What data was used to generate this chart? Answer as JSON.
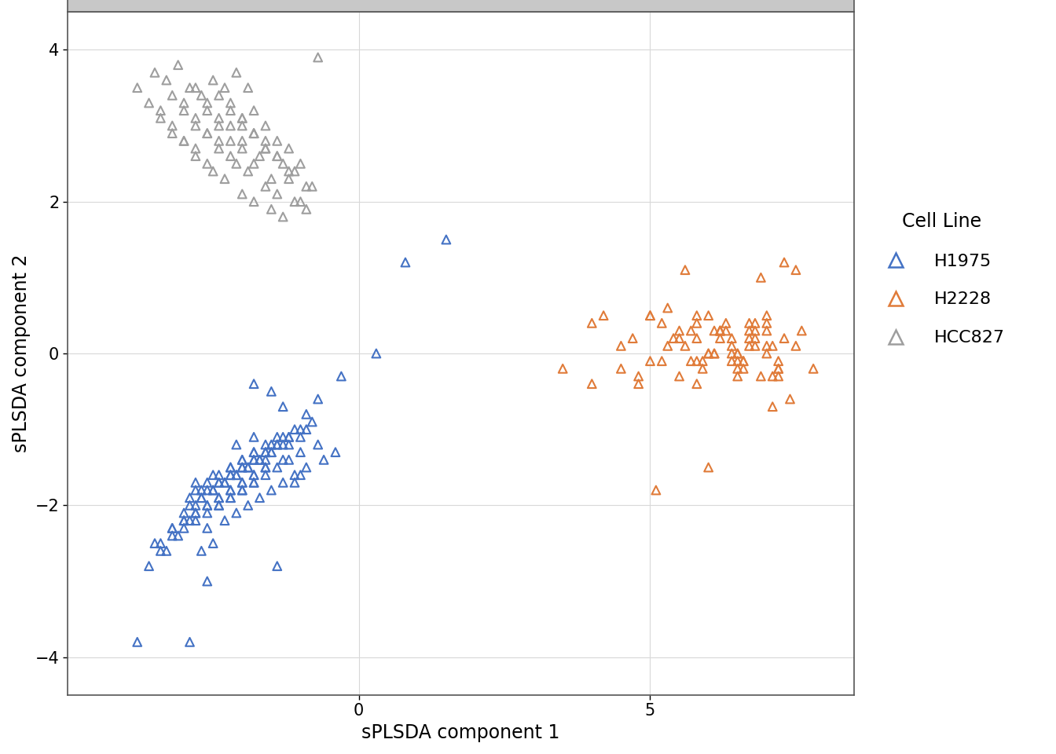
{
  "xlabel": "sPLSDA component 1",
  "ylabel": "sPLSDA component 2",
  "xlim": [
    -5.0,
    8.5
  ],
  "ylim": [
    -4.5,
    4.5
  ],
  "xticks": [
    0,
    5
  ],
  "yticks": [
    -4,
    -2,
    0,
    2,
    4
  ],
  "colors": {
    "H1975": "#4472C4",
    "H2228": "#E07B39",
    "HCC827": "#9E9E9E"
  },
  "background_color": "#FFFFFF",
  "panel_bg": "#FFFFFF",
  "title_bg": "#C8C8C8",
  "title_border": "#555555",
  "grid_color": "#D8D8D8",
  "H1975_x": [
    -3.8,
    -0.3,
    0.8,
    1.5,
    0.3,
    -3.5,
    -2.8,
    -2.5,
    -2.2,
    -2.0,
    -1.8,
    -1.5,
    -1.3,
    -1.0,
    -0.8,
    -3.2,
    -2.9,
    -2.7,
    -2.4,
    -2.2,
    -2.0,
    -1.8,
    -1.6,
    -1.4,
    -1.2,
    -3.0,
    -2.8,
    -2.6,
    -2.4,
    -2.2,
    -2.0,
    -1.8,
    -1.6,
    -1.4,
    -1.1,
    -3.3,
    -3.0,
    -2.8,
    -2.6,
    -2.4,
    -2.2,
    -2.0,
    -1.8,
    -1.6,
    -1.3,
    -3.1,
    -2.9,
    -2.7,
    -2.5,
    -2.3,
    -2.1,
    -1.9,
    -1.7,
    -1.5,
    -1.2,
    -2.9,
    -2.7,
    -2.5,
    -2.3,
    -2.1,
    -1.9,
    -1.7,
    -1.5,
    -1.3,
    -1.0,
    -2.8,
    -2.6,
    -2.4,
    -2.2,
    -2.0,
    -1.8,
    -1.6,
    -1.4,
    -1.2,
    -0.9,
    -2.6,
    -2.4,
    -2.2,
    -2.0,
    -1.8,
    -1.6,
    -1.4,
    -1.2,
    -1.0,
    -0.7,
    -2.5,
    -2.3,
    -2.1,
    -1.9,
    -1.7,
    -1.5,
    -1.3,
    -1.1,
    -0.9,
    -0.6,
    -3.6,
    -3.4,
    -3.2,
    -3.0,
    -2.8,
    -2.6,
    -2.4,
    -2.2,
    -2.0,
    -1.8,
    -3.4,
    -3.2,
    -3.0,
    -2.8,
    -2.6,
    -2.4,
    -2.2,
    -2.0,
    -1.8,
    -1.6,
    -0.4,
    -1.6,
    -0.9,
    -1.0,
    -0.7,
    -1.4,
    -2.6,
    -2.9,
    -2.7,
    -1.1,
    -1.8,
    -2.1,
    -1.3,
    -1.5,
    -1.8
  ],
  "H1975_y": [
    -3.8,
    -0.3,
    1.2,
    1.5,
    0.0,
    -2.5,
    -1.7,
    -1.6,
    -1.5,
    -1.4,
    -1.3,
    -1.2,
    -1.1,
    -1.0,
    -0.9,
    -2.3,
    -1.9,
    -1.8,
    -1.7,
    -1.6,
    -1.5,
    -1.4,
    -1.3,
    -1.2,
    -1.1,
    -2.1,
    -1.8,
    -1.7,
    -1.6,
    -1.5,
    -1.4,
    -1.3,
    -1.2,
    -1.1,
    -1.0,
    -2.6,
    -2.2,
    -2.1,
    -2.0,
    -1.9,
    -1.8,
    -1.7,
    -1.6,
    -1.5,
    -1.4,
    -2.4,
    -2.0,
    -1.9,
    -1.8,
    -1.7,
    -1.6,
    -1.5,
    -1.4,
    -1.3,
    -1.2,
    -2.2,
    -1.9,
    -1.8,
    -1.7,
    -1.6,
    -1.5,
    -1.4,
    -1.3,
    -1.2,
    -1.1,
    -2.0,
    -1.8,
    -1.7,
    -1.6,
    -1.5,
    -1.4,
    -1.3,
    -1.2,
    -1.1,
    -1.0,
    -2.3,
    -2.0,
    -1.9,
    -1.8,
    -1.7,
    -1.6,
    -1.5,
    -1.4,
    -1.3,
    -1.2,
    -2.5,
    -2.2,
    -2.1,
    -2.0,
    -1.9,
    -1.8,
    -1.7,
    -1.6,
    -1.5,
    -1.4,
    -2.8,
    -2.5,
    -2.4,
    -2.3,
    -2.2,
    -2.1,
    -2.0,
    -1.9,
    -1.8,
    -1.7,
    -2.6,
    -2.3,
    -2.2,
    -2.1,
    -2.0,
    -1.9,
    -1.8,
    -1.7,
    -1.6,
    -1.5,
    -1.3,
    -1.4,
    -0.8,
    -1.6,
    -0.6,
    -2.8,
    -3.0,
    -3.8,
    -2.6,
    -1.7,
    -1.1,
    -1.2,
    -0.7,
    -0.5,
    -0.4
  ],
  "H2228_x": [
    3.5,
    4.0,
    4.5,
    5.0,
    5.5,
    5.8,
    6.0,
    6.2,
    6.5,
    6.8,
    4.2,
    4.7,
    5.2,
    5.7,
    6.0,
    6.3,
    6.5,
    6.7,
    7.0,
    7.2,
    4.8,
    5.3,
    5.8,
    6.1,
    6.4,
    6.6,
    6.8,
    7.0,
    7.2,
    7.5,
    5.5,
    5.9,
    6.2,
    6.5,
    6.7,
    6.9,
    7.1,
    7.3,
    5.2,
    5.6,
    5.9,
    6.2,
    6.4,
    6.6,
    6.8,
    7.0,
    7.2,
    4.0,
    4.5,
    5.0,
    5.5,
    5.8,
    6.1,
    6.4,
    6.7,
    7.0,
    6.0,
    6.3,
    6.5,
    6.7,
    7.0,
    7.2,
    4.8,
    5.3,
    5.7,
    6.2,
    6.4,
    6.6,
    6.8,
    7.1,
    5.0,
    5.4,
    5.8,
    6.1,
    6.5,
    5.6,
    6.9,
    5.1,
    6.0,
    7.1,
    5.8,
    7.8,
    7.4,
    7.6,
    7.3,
    7.5
  ],
  "H2228_y": [
    -0.2,
    0.4,
    0.1,
    -0.1,
    0.3,
    0.5,
    0.0,
    0.2,
    -0.3,
    0.1,
    0.5,
    0.2,
    -0.1,
    0.3,
    0.0,
    0.4,
    -0.2,
    0.1,
    0.3,
    -0.1,
    -0.3,
    0.1,
    0.4,
    0.0,
    0.2,
    -0.1,
    0.3,
    0.5,
    -0.2,
    0.1,
    0.2,
    -0.1,
    0.3,
    0.0,
    0.4,
    -0.3,
    0.1,
    0.2,
    0.4,
    0.1,
    -0.2,
    0.3,
    0.0,
    -0.1,
    0.2,
    0.4,
    -0.3,
    -0.4,
    -0.2,
    0.5,
    -0.3,
    0.2,
    0.0,
    -0.1,
    0.3,
    0.1,
    0.5,
    0.3,
    -0.1,
    0.2,
    0.0,
    -0.2,
    -0.4,
    0.6,
    -0.1,
    0.3,
    0.1,
    -0.2,
    0.4,
    -0.3,
    0.5,
    0.2,
    -0.1,
    0.3,
    0.0,
    1.1,
    1.0,
    -1.8,
    -1.5,
    -0.7,
    -0.4,
    -0.2,
    -0.6,
    0.3,
    1.2,
    1.1
  ],
  "HCC827_x": [
    -3.8,
    -3.5,
    -3.3,
    -3.1,
    -2.9,
    -2.7,
    -2.5,
    -2.3,
    -2.1,
    -1.9,
    -3.6,
    -3.4,
    -3.2,
    -3.0,
    -2.8,
    -2.6,
    -2.4,
    -2.2,
    -2.0,
    -1.8,
    -3.4,
    -3.2,
    -3.0,
    -2.8,
    -2.6,
    -2.4,
    -2.2,
    -2.0,
    -1.8,
    -1.6,
    -3.2,
    -3.0,
    -2.8,
    -2.6,
    -2.4,
    -2.2,
    -2.0,
    -1.8,
    -1.6,
    -1.4,
    -3.0,
    -2.8,
    -2.6,
    -2.4,
    -2.2,
    -2.0,
    -1.8,
    -1.6,
    -1.4,
    -1.2,
    -2.8,
    -2.6,
    -2.4,
    -2.2,
    -2.0,
    -1.8,
    -1.6,
    -1.4,
    -1.2,
    -1.0,
    -2.5,
    -2.3,
    -2.1,
    -1.9,
    -1.7,
    -1.5,
    -1.3,
    -1.1,
    -0.9,
    -2.0,
    -1.8,
    -1.6,
    -1.4,
    -1.2,
    -1.0,
    -0.8,
    -1.5,
    -1.3,
    -1.1,
    -0.9,
    -0.7
  ],
  "HCC827_y": [
    3.5,
    3.7,
    3.6,
    3.8,
    3.5,
    3.4,
    3.6,
    3.5,
    3.7,
    3.5,
    3.3,
    3.2,
    3.4,
    3.3,
    3.5,
    3.2,
    3.4,
    3.3,
    3.1,
    3.2,
    3.1,
    3.0,
    3.2,
    3.1,
    3.3,
    3.0,
    3.2,
    3.1,
    2.9,
    3.0,
    2.9,
    2.8,
    3.0,
    2.9,
    3.1,
    2.8,
    3.0,
    2.9,
    2.7,
    2.8,
    2.8,
    2.7,
    2.9,
    2.8,
    3.0,
    2.7,
    2.9,
    2.8,
    2.6,
    2.7,
    2.6,
    2.5,
    2.7,
    2.6,
    2.8,
    2.5,
    2.7,
    2.6,
    2.4,
    2.5,
    2.4,
    2.3,
    2.5,
    2.4,
    2.6,
    2.3,
    2.5,
    2.4,
    2.2,
    2.1,
    2.0,
    2.2,
    2.1,
    2.3,
    2.0,
    2.2,
    1.9,
    1.8,
    2.0,
    1.9,
    3.9
  ],
  "marker_size": 60,
  "marker_linewidth": 1.5,
  "title_fontsize": 24,
  "label_fontsize": 17,
  "tick_fontsize": 15,
  "legend_fontsize": 16,
  "legend_title_fontsize": 17
}
